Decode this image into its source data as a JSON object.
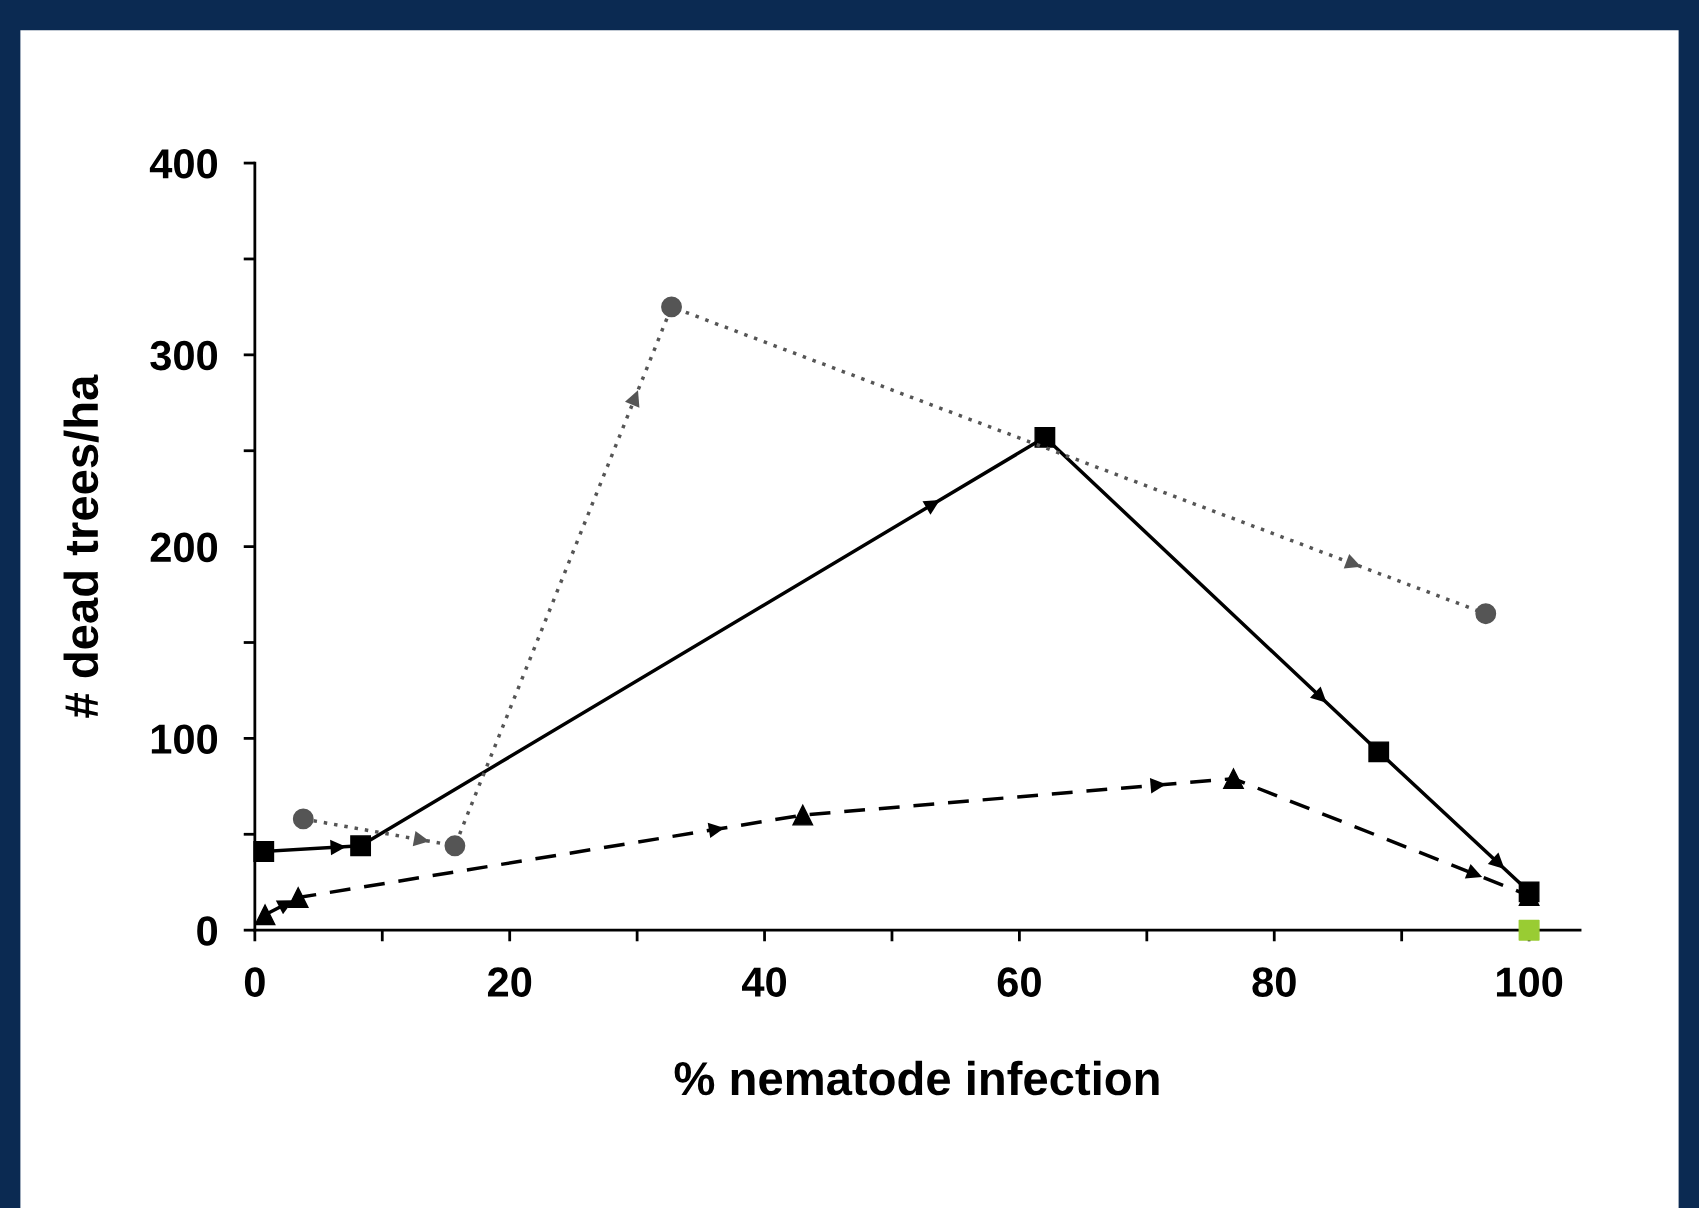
{
  "chart_data": {
    "type": "line",
    "xlabel": "% nematode infection",
    "ylabel": "# dead trees/ha",
    "xlim": [
      0,
      104
    ],
    "ylim": [
      0,
      400
    ],
    "xticks": [
      0,
      {
        "value": 10,
        "label": null
      },
      20,
      {
        "value": 30,
        "label": null
      },
      40,
      {
        "value": 50,
        "label": null
      },
      60,
      {
        "value": 70,
        "label": null
      },
      80,
      {
        "value": 90,
        "label": null
      },
      100
    ],
    "yticks": [
      0,
      {
        "value": 50,
        "label": null
      },
      100,
      {
        "value": 150,
        "label": null
      },
      200,
      {
        "value": 250,
        "label": null
      },
      300,
      {
        "value": 350,
        "label": null
      },
      400
    ],
    "grid": false,
    "legend": false,
    "series": [
      {
        "color": "#000000",
        "marker": "square",
        "line_style": "solid",
        "x": [
          0.7,
          8.3,
          62,
          88.2,
          100
        ],
        "values": [
          41,
          44,
          257,
          93,
          20
        ]
      },
      {
        "color": "#555555",
        "marker": "circle",
        "line_style": "dotted",
        "x": [
          3.8,
          15.7,
          32.7,
          96.6
        ],
        "values": [
          58,
          44,
          325,
          165
        ]
      },
      {
        "color": "#000000",
        "marker": "triangle",
        "line_style": "dashed",
        "x": [
          0.8,
          3.4,
          43,
          76.8,
          100
        ],
        "values": [
          8,
          17,
          60,
          79,
          18
        ]
      },
      {
        "type": "scatter",
        "color": "#99cc33",
        "marker": "square",
        "x": [
          100
        ],
        "values": [
          0
        ]
      }
    ]
  }
}
